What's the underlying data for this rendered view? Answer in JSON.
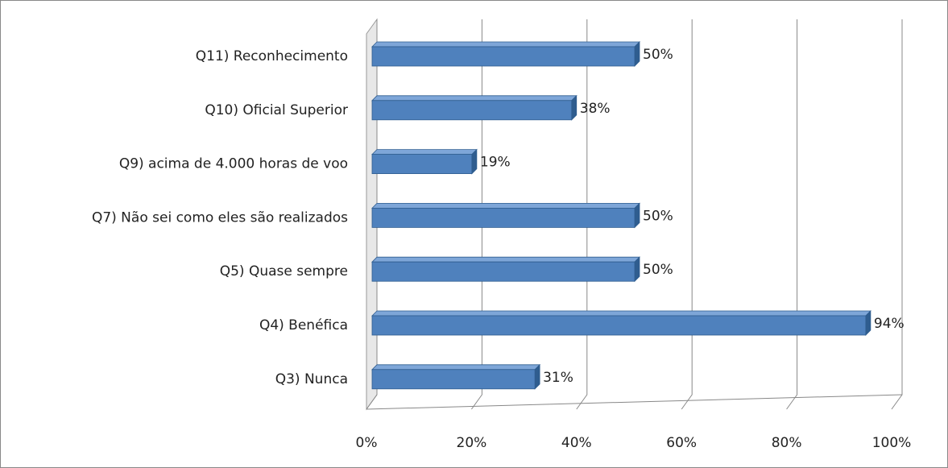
{
  "chart_data": {
    "type": "bar",
    "orientation": "horizontal",
    "categories": [
      "Q11) Reconhecimento",
      "Q10) Oficial Superior",
      "Q9) acima de 4.000 horas de voo",
      "Q7) Não sei como eles são realizados",
      "Q5) Quase sempre",
      "Q4) Benéfica",
      "Q3) Nunca"
    ],
    "values": [
      50,
      38,
      19,
      50,
      50,
      94,
      31
    ],
    "value_labels": [
      "50%",
      "38%",
      "19%",
      "50%",
      "50%",
      "94%",
      "31%"
    ],
    "color": "#4f81bd",
    "xlim": [
      0,
      100
    ],
    "xticks": [
      {
        "value": 0,
        "label": "0%"
      },
      {
        "value": 20,
        "label": "20%"
      },
      {
        "value": 40,
        "label": "40%"
      },
      {
        "value": 60,
        "label": "60%"
      },
      {
        "value": 80,
        "label": "80%"
      },
      {
        "value": 100,
        "label": "100%"
      }
    ],
    "grid": true
  }
}
